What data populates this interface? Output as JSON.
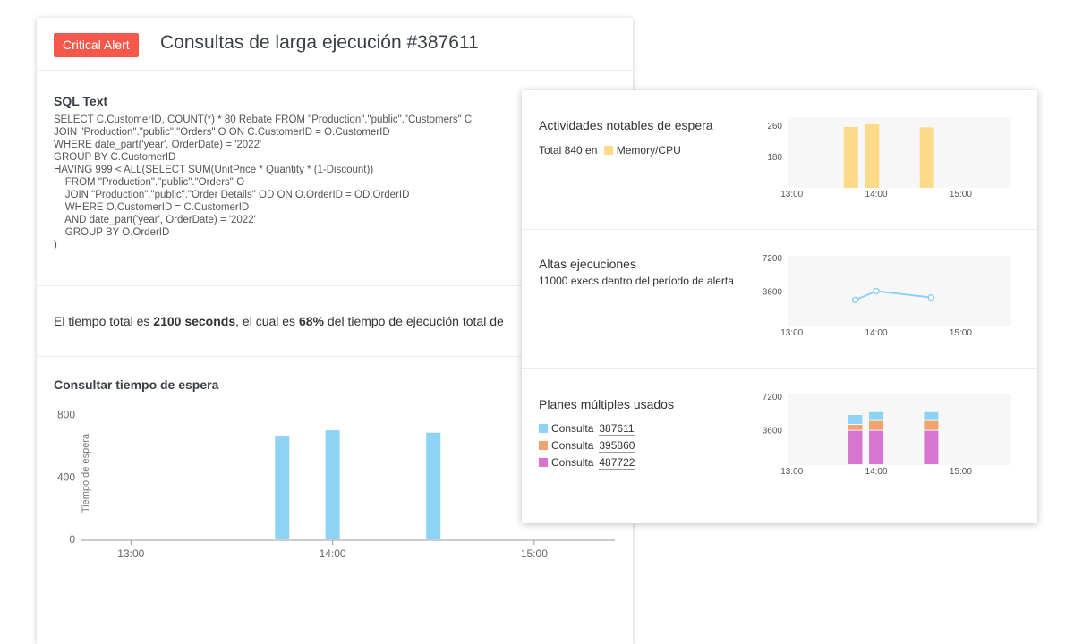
{
  "alert": {
    "badge": "Critical Alert",
    "title": "Consultas de larga ejecución #387611"
  },
  "sql": {
    "heading": "SQL Text",
    "text": "SELECT C.CustomerID, COUNT(*) * 80 Rebate FROM \"Production\".\"public\".\"Customers\" C\nJOIN \"Production\".\"public\".\"Orders\" O ON C.CustomerID = O.CustomerID\nWHERE date_part('year', OrderDate) = '2022'\nGROUP BY C.CustomerID\nHAVING 999 < ALL(SELECT SUM(UnitPrice * Quantity * (1-Discount))\n    FROM \"Production\".\"public\".\"Orders\" O\n    JOIN \"Production\".\"public\".\"Order Details\" OD ON O.OrderID = OD.OrderID\n    WHERE O.CustomerID = C.CustomerID\n    AND date_part('year', OrderDate) = '2022'\n    GROUP BY O.OrderID\n)"
  },
  "summary": {
    "prefix": "El tiempo total es ",
    "seconds": "2100 seconds",
    "middle": ", el cual es ",
    "percent": "68%",
    "suffix": " del tiempo de ejecución total de"
  },
  "wait_chart": {
    "heading": "Consultar tiempo de espera"
  },
  "panels": {
    "wait": {
      "title": "Actividades notables de espera",
      "total_prefix": "Total 840 en",
      "category": "Memory/CPU",
      "category_color": "#fdd98a"
    },
    "execs": {
      "title": "Altas ejecuciones",
      "subtitle": "11000 execs dentro del período de alerta"
    },
    "plans": {
      "title": "Planes múltiples usados",
      "legend": [
        {
          "label": "Consulta",
          "id": "387611",
          "color": "#8dd3f5"
        },
        {
          "label": "Consulta",
          "id": "395860",
          "color": "#efa36e"
        },
        {
          "label": "Consulta",
          "id": "487722",
          "color": "#d875d1"
        }
      ]
    }
  },
  "chart_data": [
    {
      "type": "bar",
      "title": "Consultar tiempo de espera",
      "ylabel": "Tiempo de espera",
      "xlabel": "",
      "x_ticks": [
        "13:00",
        "14:00",
        "15:00"
      ],
      "y_ticks": [
        0,
        400,
        800
      ],
      "ylim": [
        0,
        850
      ],
      "xlim": [
        12.75,
        15.4
      ],
      "x": [
        13.75,
        14.0,
        14.5
      ],
      "values": [
        660,
        700,
        685
      ],
      "color": "#8dd3f5",
      "grid": false
    },
    {
      "type": "bar",
      "title": "Actividades notables de espera",
      "x_ticks": [
        "13:00",
        "14:00",
        "15:00"
      ],
      "y_ticks": [
        180,
        260
      ],
      "ylim": [
        100,
        280
      ],
      "xlim": [
        12.95,
        15.6
      ],
      "x": [
        13.7,
        13.95,
        14.6
      ],
      "values": [
        255,
        262,
        254
      ],
      "color": "#fdd98a",
      "grid": false
    },
    {
      "type": "line",
      "title": "Altas ejecuciones",
      "x_ticks": [
        "13:00",
        "14:00",
        "15:00"
      ],
      "y_ticks": [
        3600,
        7200
      ],
      "ylim": [
        0,
        7200
      ],
      "xlim": [
        12.95,
        15.6
      ],
      "x": [
        13.75,
        14.0,
        14.65
      ],
      "values": [
        2700,
        3600,
        2950
      ],
      "color": "#8dd3f5",
      "grid": false
    },
    {
      "type": "bar",
      "stacked": true,
      "title": "Planes múltiples usados",
      "x_ticks": [
        "13:00",
        "14:00",
        "15:00"
      ],
      "y_ticks": [
        3600,
        7200
      ],
      "ylim": [
        0,
        7200
      ],
      "xlim": [
        12.95,
        15.6
      ],
      "x": [
        13.75,
        14.0,
        14.65
      ],
      "series": [
        {
          "name": "Consulta 487722",
          "color": "#d875d1",
          "values": [
            3500,
            3500,
            3500
          ]
        },
        {
          "name": "Consulta 395860",
          "color": "#efa36e",
          "values": [
            600,
            1000,
            1000
          ]
        },
        {
          "name": "Consulta 387611",
          "color": "#8dd3f5",
          "values": [
            1000,
            900,
            900
          ]
        }
      ],
      "grid": false
    }
  ]
}
